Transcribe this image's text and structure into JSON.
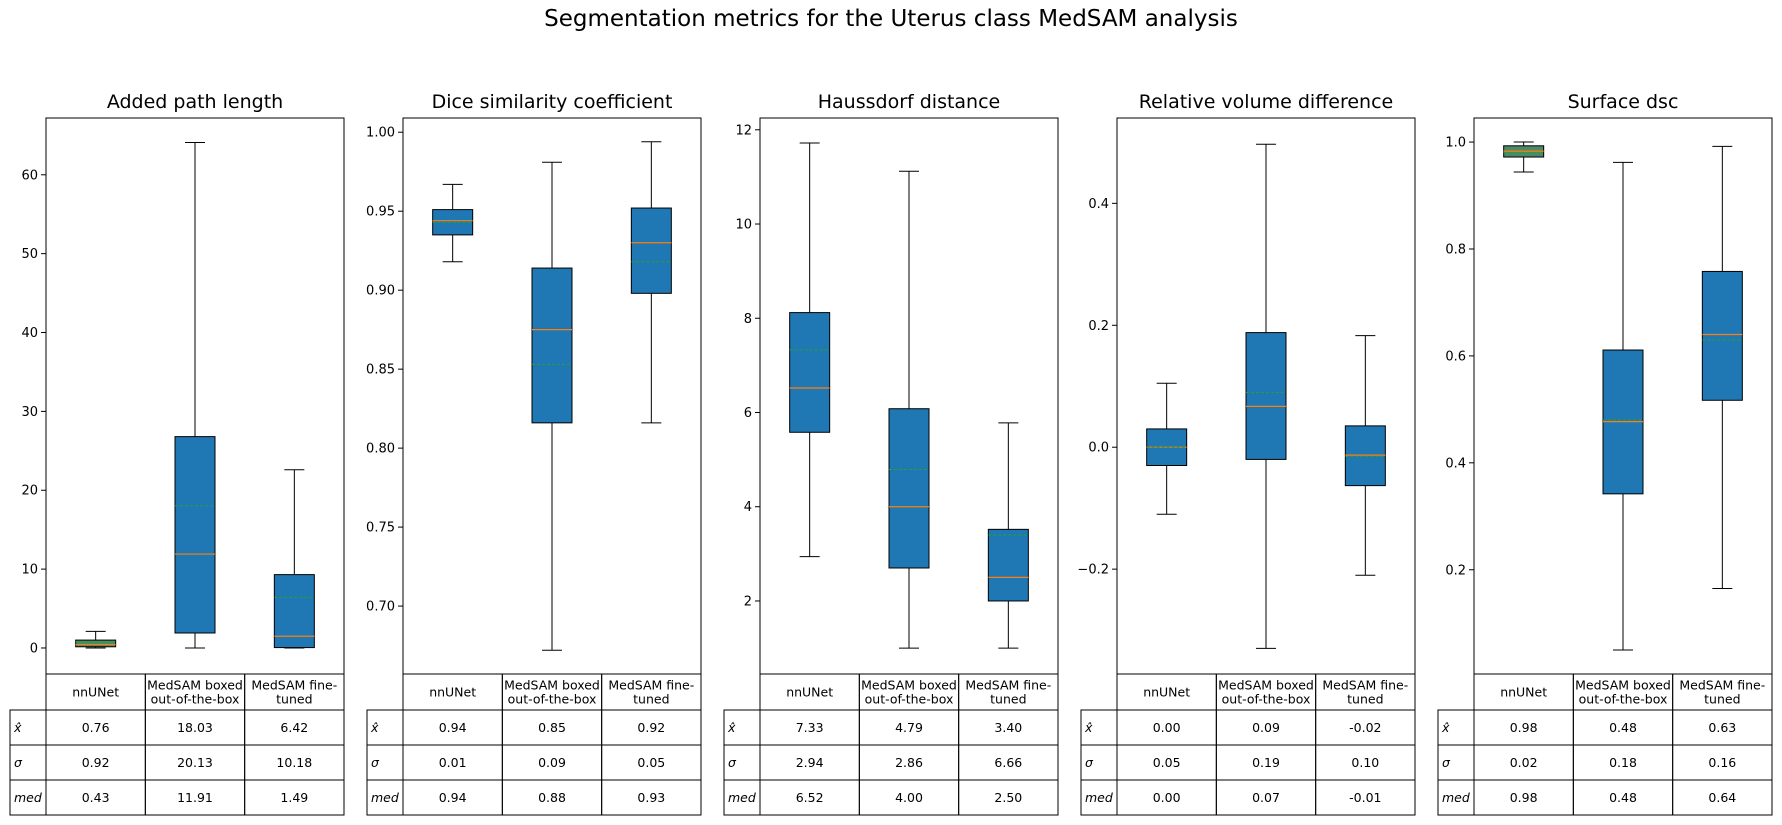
{
  "suptitle": "Segmentation metrics for the Uterus class MedSAM analysis",
  "colors": {
    "box_fill": "#1f77b4",
    "median": "#ff7f0e",
    "mean": "#2ca02c",
    "nnunet_box_fill": "#4a8a6a"
  },
  "table_row_labels": [
    "x̂",
    "σ",
    "med"
  ],
  "chart_data": [
    {
      "type": "box",
      "title": "Added path length",
      "categories": [
        "nnUNet",
        "MedSAM boxed out-of-the-box",
        "MedSAM fine-tuned"
      ],
      "category_lines": [
        [
          "nnUNet"
        ],
        [
          "MedSAM boxed",
          "out-of-the-box"
        ],
        [
          "MedSAM fine-",
          "tuned"
        ]
      ],
      "ylim": [
        -3.3,
        67.2
      ],
      "yticks": [
        0,
        10,
        20,
        30,
        40,
        50,
        60
      ],
      "ytick_labels": [
        "0",
        "10",
        "20",
        "30",
        "40",
        "50",
        "60"
      ],
      "boxes": [
        {
          "whislo": 0.0,
          "q1": 0.15,
          "med": 0.43,
          "q3": 1.0,
          "whishi": 2.1,
          "mean": 0.76
        },
        {
          "whislo": 0.0,
          "q1": 1.9,
          "med": 11.91,
          "q3": 26.8,
          "whishi": 64.1,
          "mean": 18.03
        },
        {
          "whislo": 0.0,
          "q1": 0.05,
          "med": 1.49,
          "q3": 9.3,
          "whishi": 22.6,
          "mean": 6.42
        }
      ],
      "table": {
        "mean": [
          "0.76",
          "18.03",
          "6.42"
        ],
        "std": [
          "0.92",
          "20.13",
          "10.18"
        ],
        "median": [
          "0.43",
          "11.91",
          "1.49"
        ]
      }
    },
    {
      "type": "box",
      "title": "Dice similarity coefficient",
      "categories": [
        "nnUNet",
        "MedSAM boxed out-of-the-box",
        "MedSAM fine-tuned"
      ],
      "category_lines": [
        [
          "nnUNet"
        ],
        [
          "MedSAM boxed",
          "out-of-the-box"
        ],
        [
          "MedSAM fine-",
          "tuned"
        ]
      ],
      "ylim": [
        0.657,
        1.009
      ],
      "yticks": [
        0.7,
        0.75,
        0.8,
        0.85,
        0.9,
        0.95,
        1.0
      ],
      "ytick_labels": [
        "0.70",
        "0.75",
        "0.80",
        "0.85",
        "0.90",
        "0.95",
        "1.00"
      ],
      "boxes": [
        {
          "whislo": 0.918,
          "q1": 0.935,
          "med": 0.944,
          "q3": 0.951,
          "whishi": 0.967,
          "mean": 0.943
        },
        {
          "whislo": 0.672,
          "q1": 0.816,
          "med": 0.875,
          "q3": 0.914,
          "whishi": 0.981,
          "mean": 0.853
        },
        {
          "whislo": 0.816,
          "q1": 0.898,
          "med": 0.93,
          "q3": 0.952,
          "whishi": 0.994,
          "mean": 0.918
        }
      ],
      "table": {
        "mean": [
          "0.94",
          "0.85",
          "0.92"
        ],
        "std": [
          "0.01",
          "0.09",
          "0.05"
        ],
        "median": [
          "0.94",
          "0.88",
          "0.93"
        ]
      }
    },
    {
      "type": "box",
      "title": "Haussdorf distance",
      "categories": [
        "nnUNet",
        "MedSAM boxed out-of-the-box",
        "MedSAM fine-tuned"
      ],
      "category_lines": [
        [
          "nnUNet"
        ],
        [
          "MedSAM boxed",
          "out-of-the-box"
        ],
        [
          "MedSAM fine-",
          "tuned"
        ]
      ],
      "ylim": [
        0.45,
        12.25
      ],
      "yticks": [
        2,
        4,
        6,
        8,
        10,
        12
      ],
      "ytick_labels": [
        "2",
        "4",
        "6",
        "8",
        "10",
        "12"
      ],
      "boxes": [
        {
          "whislo": 2.94,
          "q1": 5.58,
          "med": 6.52,
          "q3": 8.12,
          "whishi": 11.72,
          "mean": 7.33
        },
        {
          "whislo": 1.0,
          "q1": 2.7,
          "med": 4.0,
          "q3": 6.08,
          "whishi": 11.12,
          "mean": 4.79
        },
        {
          "whislo": 1.0,
          "q1": 2.0,
          "med": 2.5,
          "q3": 3.52,
          "whishi": 5.78,
          "mean": 3.4
        }
      ],
      "table": {
        "mean": [
          "7.33",
          "4.79",
          "3.40"
        ],
        "std": [
          "2.94",
          "2.86",
          "6.66"
        ],
        "median": [
          "6.52",
          "4.00",
          "2.50"
        ]
      }
    },
    {
      "type": "box",
      "title": "Relative volume difference",
      "categories": [
        "nnUNet",
        "MedSAM boxed out-of-the-box",
        "MedSAM fine-tuned"
      ],
      "category_lines": [
        [
          "nnUNet"
        ],
        [
          "MedSAM boxed",
          "out-of-the-box"
        ],
        [
          "MedSAM fine-",
          "tuned"
        ]
      ],
      "ylim": [
        -0.372,
        0.54
      ],
      "yticks": [
        -0.2,
        0.0,
        0.2,
        0.4
      ],
      "ytick_labels": [
        "−0.2",
        "0.0",
        "0.2",
        "0.4"
      ],
      "boxes": [
        {
          "whislo": -0.11,
          "q1": -0.03,
          "med": 0.0,
          "q3": 0.03,
          "whishi": 0.105,
          "mean": 0.0
        },
        {
          "whislo": -0.33,
          "q1": -0.02,
          "med": 0.067,
          "q3": 0.188,
          "whishi": 0.497,
          "mean": 0.09
        },
        {
          "whislo": -0.21,
          "q1": -0.063,
          "med": -0.013,
          "q3": 0.035,
          "whishi": 0.183,
          "mean": -0.015
        }
      ],
      "table": {
        "mean": [
          "0.00",
          "0.09",
          "-0.02"
        ],
        "std": [
          "0.05",
          "0.19",
          "0.10"
        ],
        "median": [
          "0.00",
          "0.07",
          "-0.01"
        ]
      }
    },
    {
      "type": "box",
      "title": "Surface dsc",
      "categories": [
        "nnUNet",
        "MedSAM boxed out-of-the-box",
        "MedSAM fine-tuned"
      ],
      "category_lines": [
        [
          "nnUNet"
        ],
        [
          "MedSAM boxed",
          "out-of-the-box"
        ],
        [
          "MedSAM fine-",
          "tuned"
        ]
      ],
      "ylim": [
        0.005,
        1.045
      ],
      "yticks": [
        0.2,
        0.4,
        0.6,
        0.8,
        1.0
      ],
      "ytick_labels": [
        "0.2",
        "0.4",
        "0.6",
        "0.8",
        "1.0"
      ],
      "boxes": [
        {
          "whislo": 0.944,
          "q1": 0.972,
          "med": 0.983,
          "q3": 0.993,
          "whishi": 1.0,
          "mean": 0.98
        },
        {
          "whislo": 0.05,
          "q1": 0.342,
          "med": 0.477,
          "q3": 0.611,
          "whishi": 0.962,
          "mean": 0.48
        },
        {
          "whislo": 0.165,
          "q1": 0.517,
          "med": 0.64,
          "q3": 0.758,
          "whishi": 0.992,
          "mean": 0.63
        }
      ],
      "table": {
        "mean": [
          "0.98",
          "0.48",
          "0.63"
        ],
        "std": [
          "0.02",
          "0.18",
          "0.16"
        ],
        "median": [
          "0.98",
          "0.48",
          "0.64"
        ]
      }
    }
  ]
}
